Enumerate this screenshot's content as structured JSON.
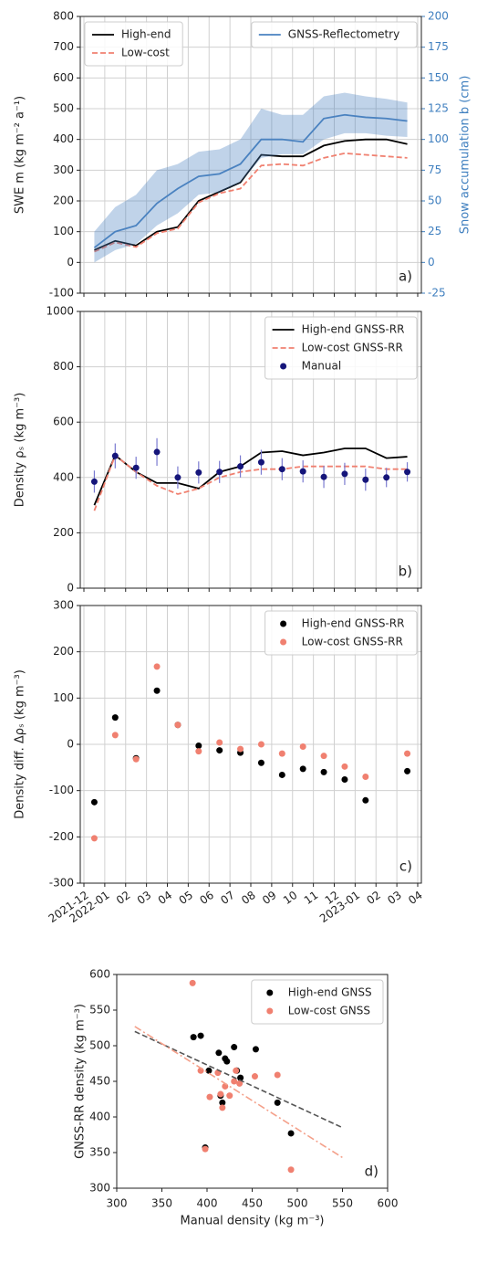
{
  "chart_data": [
    {
      "type": "line",
      "panel_label": "a)",
      "ylabel": "SWE m (kg m⁻² a⁻¹)",
      "y2label": "Snow accumulation b (cm)",
      "y2color": "#3f7fbf",
      "xlim": [
        "2021-12",
        "2023-04"
      ],
      "xticks": [
        "2021-12",
        "2022-01",
        "2022-02",
        "2022-03",
        "2022-04",
        "2022-05",
        "2022-06",
        "2022-07",
        "2022-08",
        "2022-09",
        "2022-10",
        "2022-11",
        "2022-12",
        "2023-01",
        "2023-02",
        "2023-03",
        "2023-04"
      ],
      "ylim": [
        -100,
        800
      ],
      "yticks": [
        -100,
        0,
        100,
        200,
        300,
        400,
        500,
        600,
        700,
        800
      ],
      "y2lim": [
        -25,
        200
      ],
      "y2ticks": [
        -25,
        0,
        25,
        50,
        75,
        100,
        125,
        150,
        175,
        200
      ],
      "grid": true,
      "legend": "upper left",
      "x": [
        "2021-12",
        "2022-01",
        "2022-02",
        "2022-03",
        "2022-04",
        "2022-05",
        "2022-06",
        "2022-07",
        "2022-08",
        "2022-09",
        "2022-10",
        "2022-11",
        "2022-12",
        "2023-01",
        "2023-02",
        "2023-03"
      ],
      "series": [
        {
          "name": "High-end",
          "color": "#000000",
          "dash": "solid",
          "values": [
            40,
            70,
            55,
            100,
            115,
            200,
            230,
            260,
            350,
            345,
            345,
            380,
            395,
            400,
            400,
            385
          ]
        },
        {
          "name": "Low-cost",
          "color": "#f08070",
          "dash": "dashed",
          "values": [
            35,
            65,
            50,
            95,
            110,
            195,
            225,
            240,
            315,
            320,
            315,
            340,
            355,
            350,
            345,
            340
          ]
        },
        {
          "name": "GNSS-Reflectometry",
          "color": "#4a82c0",
          "dash": "solid",
          "axis": "y2",
          "values": [
            12,
            25,
            30,
            48,
            60,
            70,
            72,
            80,
            100,
            100,
            98,
            117,
            120,
            118,
            117,
            115
          ],
          "lower": [
            0,
            10,
            15,
            30,
            40,
            55,
            57,
            65,
            85,
            88,
            88,
            100,
            105,
            105,
            103,
            102
          ],
          "upper": [
            25,
            45,
            55,
            75,
            80,
            90,
            92,
            100,
            125,
            120,
            120,
            135,
            138,
            135,
            133,
            130
          ]
        }
      ]
    },
    {
      "type": "line",
      "panel_label": "b)",
      "ylabel": "Density ρₛ (kg m⁻³)",
      "xlim": [
        "2021-12",
        "2023-04"
      ],
      "xticks": [
        "2021-12",
        "2022-01",
        "2022-02",
        "2022-03",
        "2022-04",
        "2022-05",
        "2022-06",
        "2022-07",
        "2022-08",
        "2022-09",
        "2022-10",
        "2022-11",
        "2022-12",
        "2023-01",
        "2023-02",
        "2023-03",
        "2023-04"
      ],
      "ylim": [
        0,
        1000
      ],
      "yticks": [
        0,
        200,
        400,
        600,
        800,
        1000
      ],
      "grid": true,
      "legend": "upper right",
      "x": [
        "2021-12",
        "2022-01",
        "2022-02",
        "2022-03",
        "2022-04",
        "2022-05",
        "2022-06",
        "2022-07",
        "2022-08",
        "2022-09",
        "2022-10",
        "2022-11",
        "2022-12",
        "2023-01",
        "2023-02",
        "2023-03"
      ],
      "series": [
        {
          "name": "High-end GNSS-RR",
          "color": "#000000",
          "dash": "solid",
          "values": [
            300,
            480,
            420,
            380,
            380,
            360,
            420,
            440,
            490,
            495,
            480,
            490,
            505,
            505,
            470,
            475
          ]
        },
        {
          "name": "Low-cost GNSS-RR",
          "color": "#f08070",
          "dash": "dashed",
          "values": [
            280,
            480,
            420,
            370,
            340,
            360,
            400,
            420,
            430,
            430,
            440,
            440,
            440,
            440,
            430,
            430
          ]
        },
        {
          "name": "Manual",
          "color": "#15157a",
          "style": "markers",
          "error_color": "#7b7bd0",
          "values": [
            385,
            478,
            435,
            492,
            400,
            418,
            420,
            440,
            455,
            430,
            422,
            402,
            413,
            392,
            400,
            420
          ],
          "errors": [
            40,
            45,
            40,
            50,
            40,
            40,
            40,
            40,
            45,
            40,
            40,
            40,
            40,
            40,
            35,
            35
          ]
        }
      ]
    },
    {
      "type": "scatter",
      "panel_label": "c)",
      "ylabel": "Density diff. Δρₛ (kg m⁻³)",
      "xlim": [
        "2021-12",
        "2023-04"
      ],
      "xticks": [
        {
          "value": "2021-12",
          "label": "2021-12"
        },
        {
          "value": "2022-01",
          "label": "2022-01"
        },
        {
          "value": "2022-02",
          "label": "02"
        },
        {
          "value": "2022-03",
          "label": "03"
        },
        {
          "value": "2022-04",
          "label": "04"
        },
        {
          "value": "2022-05",
          "label": "05"
        },
        {
          "value": "2022-06",
          "label": "06"
        },
        {
          "value": "2022-07",
          "label": "07"
        },
        {
          "value": "2022-08",
          "label": "08"
        },
        {
          "value": "2022-09",
          "label": "09"
        },
        {
          "value": "2022-10",
          "label": "10"
        },
        {
          "value": "2022-11",
          "label": "11"
        },
        {
          "value": "2022-12",
          "label": "12"
        },
        {
          "value": "2023-01",
          "label": "2023-01"
        },
        {
          "value": "2023-02",
          "label": "02"
        },
        {
          "value": "2023-03",
          "label": "03"
        },
        {
          "value": "2023-04",
          "label": "04"
        }
      ],
      "ylim": [
        -300,
        300
      ],
      "yticks": [
        -300,
        -200,
        -100,
        0,
        100,
        200,
        300
      ],
      "grid": true,
      "legend": "upper right",
      "x": [
        "2021-12",
        "2022-01",
        "2022-02",
        "2022-03",
        "2022-04",
        "2022-05",
        "2022-06",
        "2022-07",
        "2022-08",
        "2022-09",
        "2022-10",
        "2022-11",
        "2022-12",
        "2023-01",
        "2023-02",
        "2023-03"
      ],
      "series": [
        {
          "name": "High-end GNSS-RR",
          "color": "#000000",
          "values": [
            -125,
            58,
            -30,
            116,
            42,
            -3,
            -13,
            -18,
            -40,
            -66,
            -53,
            -60,
            -76,
            -121,
            null,
            -58
          ]
        },
        {
          "name": "Low-cost GNSS-RR",
          "color": "#f08070",
          "values": [
            -203,
            20,
            -32,
            168,
            42,
            -15,
            4,
            -10,
            0,
            -20,
            -5,
            -25,
            -48,
            -70,
            null,
            -20
          ]
        }
      ]
    },
    {
      "type": "scatter",
      "panel_label": "d)",
      "ylabel": "GNSS-RR density  (kg m⁻³)",
      "xlabel": "Manual density (kg m⁻³)",
      "xlim": [
        300,
        600
      ],
      "xticks": [
        300,
        350,
        400,
        450,
        500,
        550,
        600
      ],
      "ylim": [
        300,
        600
      ],
      "yticks": [
        300,
        350,
        400,
        450,
        500,
        550,
        600
      ],
      "grid": false,
      "legend": "upper right",
      "series": [
        {
          "name": "High-end GNSS",
          "color": "#000000",
          "x": [
            385,
            393,
            402,
            413,
            415,
            417,
            420,
            422,
            430,
            433,
            437,
            454,
            478,
            493,
            398
          ],
          "values": [
            512,
            514,
            465,
            490,
            430,
            420,
            482,
            478,
            498,
            465,
            455,
            495,
            420,
            377,
            357
          ]
        },
        {
          "name": "Low-cost GNSS",
          "color": "#f08070",
          "x": [
            384,
            393,
            403,
            412,
            415,
            417,
            420,
            425,
            430,
            432,
            436,
            453,
            478,
            493,
            398
          ],
          "values": [
            588,
            465,
            428,
            462,
            432,
            413,
            443,
            430,
            450,
            465,
            447,
            457,
            459,
            326,
            355
          ]
        }
      ],
      "trendlines": [
        {
          "color": "#555555",
          "dash": "dashed",
          "x": [
            320,
            550
          ],
          "values": [
            520,
            385
          ]
        },
        {
          "color": "#f4a08a",
          "dash": "dashdot",
          "x": [
            320,
            550
          ],
          "values": [
            527,
            343
          ]
        }
      ]
    }
  ]
}
